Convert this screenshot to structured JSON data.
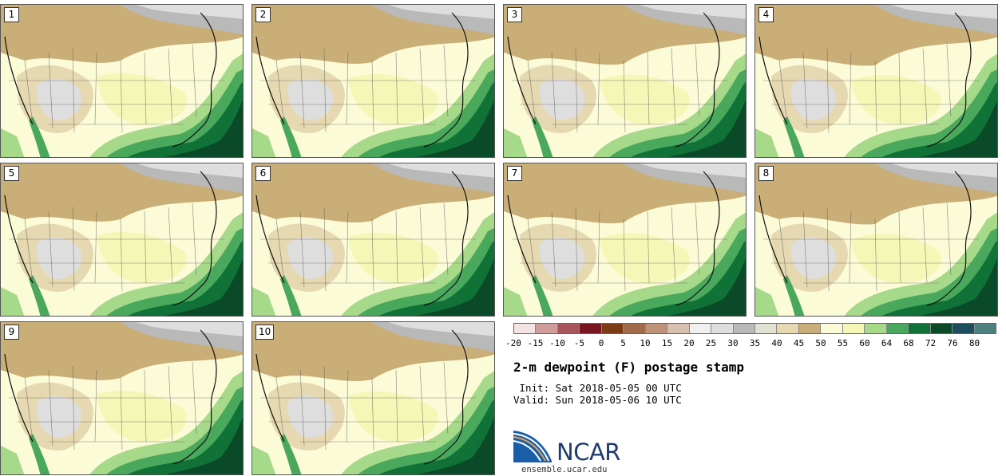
{
  "panels": [
    {
      "number": "1"
    },
    {
      "number": "2"
    },
    {
      "number": "3"
    },
    {
      "number": "4"
    },
    {
      "number": "5"
    },
    {
      "number": "6"
    },
    {
      "number": "7"
    },
    {
      "number": "8"
    },
    {
      "number": "9"
    },
    {
      "number": "10"
    }
  ],
  "colorbar": {
    "tick_labels": [
      "-20",
      "-15",
      "-10",
      "-5",
      "0",
      "5",
      "10",
      "15",
      "20",
      "25",
      "30",
      "35",
      "40",
      "45",
      "50",
      "55",
      "60",
      "64",
      "68",
      "72",
      "76",
      "80"
    ],
    "colors": [
      "#f3e3e3",
      "#cf9b9b",
      "#a8545c",
      "#7a1620",
      "#7e3a12",
      "#a36b4a",
      "#bf9379",
      "#d8bfae",
      "#f0f0f0",
      "#dedede",
      "#b9b9b9",
      "#e2e2d4",
      "#e6d8b0",
      "#c9ae78",
      "#fbfbd8",
      "#f4f7b6",
      "#a6d98a",
      "#4aa85c",
      "#117238",
      "#0b4a28",
      "#1e4f5e",
      "#4e8080"
    ]
  },
  "title": "2-m dewpoint (F) postage stamp",
  "init": " Init: Sat 2018-05-05 00 UTC",
  "valid": "Valid: Sun 2018-05-06 10 UTC",
  "logo": {
    "text": "NCAR",
    "colors": {
      "blue": "#1a5ea8",
      "orange": "#e8a04a",
      "navy": "#1f3c6e"
    }
  },
  "site": "ensemble.ucar.edu",
  "map_colors": {
    "yellow": "#fbfbd8",
    "pale_yellow": "#f4f7b6",
    "tan": "#c9ae78",
    "light_tan": "#e6d8b0",
    "gray": "#b9b9b9",
    "light_gray": "#dedede",
    "silver": "#e2e2d4",
    "light_green": "#a6d98a",
    "green": "#4aa85c",
    "dark_green": "#117238",
    "darkest_green": "#0b4a28"
  }
}
